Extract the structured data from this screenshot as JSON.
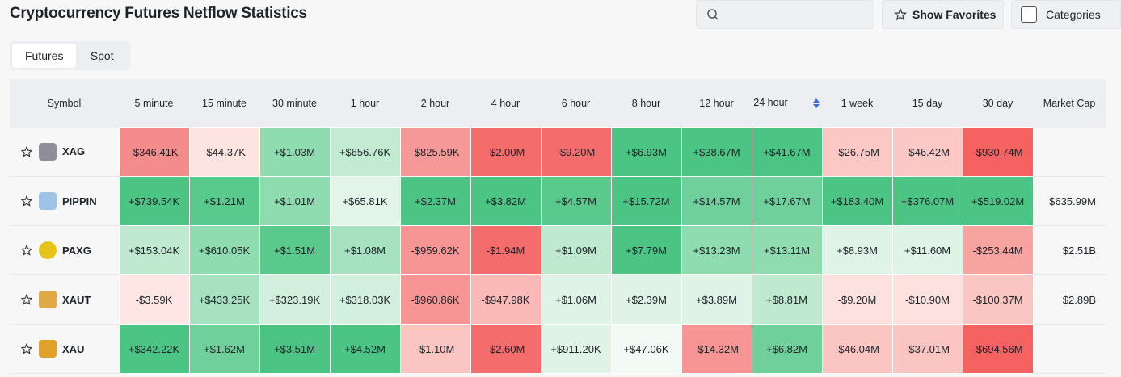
{
  "header": {
    "title": "Cryptocurrency Futures Netflow Statistics",
    "favorites_button": "Show Favorites",
    "categories_button": "Categories"
  },
  "tabs": [
    "Futures",
    "Spot"
  ],
  "table": {
    "columns": [
      "Symbol",
      "5 minute",
      "15 minute",
      "30 minute",
      "1 hour",
      "2 hour",
      "4 hour",
      "6 hour",
      "8 hour",
      "12 hour",
      "24 hour",
      "1 week",
      "15 day",
      "30 day",
      "Market Cap"
    ],
    "rows": [
      {
        "symbol": "XAG",
        "icon_color": "#8e8e99",
        "cells": [
          "-$346.41K",
          "-$44.37K",
          "+$1.03M",
          "+$656.76K",
          "-$825.59K",
          "-$2.00M",
          "-$9.20M",
          "+$6.93M",
          "+$38.67M",
          "+$41.67M",
          "-$26.75M",
          "-$46.42M",
          "-$930.74M"
        ],
        "colors": [
          "#f58c8c",
          "#fde4e1",
          "#8fdcb0",
          "#c2ebd2",
          "#f79898",
          "#f46c6c",
          "#f46c6c",
          "#4cc584",
          "#4cc584",
          "#4cc584",
          "#fbc8c5",
          "#fbc8c5",
          "#f46262"
        ],
        "market_cap": null
      },
      {
        "symbol": "PIPPIN",
        "icon_color": "#9fc3e8",
        "cells": [
          "+$739.54K",
          "+$1.21M",
          "+$1.01M",
          "+$65.81K",
          "+$2.37M",
          "+$3.82M",
          "+$4.57M",
          "+$15.72M",
          "+$14.57M",
          "+$17.67M",
          "+$183.40M",
          "+$376.07M",
          "+$519.02M"
        ],
        "colors": [
          "#4cc584",
          "#5ac98c",
          "#8fdcb0",
          "#e3f5e9",
          "#4cc584",
          "#4cc584",
          "#5ac98c",
          "#4cc584",
          "#6fd09b",
          "#6fd09b",
          "#4cc584",
          "#4cc584",
          "#4cc584"
        ],
        "market_cap": "$635.99M"
      },
      {
        "symbol": "PAXG",
        "icon_color": "#e8c41a",
        "cells": [
          "+$153.04K",
          "+$610.05K",
          "+$1.51M",
          "+$1.08M",
          "-$959.62K",
          "-$1.94M",
          "+$1.09M",
          "+$7.79M",
          "+$13.23M",
          "+$13.11M",
          "+$8.93M",
          "+$11.60M",
          "-$253.44M"
        ],
        "colors": [
          "#bfead0",
          "#8fdcb0",
          "#5ac98c",
          "#a6e2c0",
          "#f79595",
          "#f46c6c",
          "#bfead0",
          "#4cc584",
          "#8fdcb0",
          "#8fdcb0",
          "#dff3e6",
          "#dff3e6",
          "#f7a3a0"
        ],
        "market_cap": "$2.51B"
      },
      {
        "symbol": "XAUT",
        "icon_color": "#e0a948",
        "cells": [
          "-$3.59K",
          "+$433.25K",
          "+$323.19K",
          "+$318.03K",
          "-$960.86K",
          "-$947.98K",
          "+$1.06M",
          "+$2.39M",
          "+$3.89M",
          "+$8.81M",
          "-$9.20M",
          "-$10.90M",
          "-$100.37M"
        ],
        "colors": [
          "#fde6e3",
          "#a6e2c0",
          "#d3efde",
          "#d3efde",
          "#f79595",
          "#fbbab7",
          "#dff3e6",
          "#dff3e6",
          "#dff3e6",
          "#bfead0",
          "#fde1de",
          "#fde1de",
          "#fbc5c2"
        ],
        "market_cap": "$2.89B"
      },
      {
        "symbol": "XAU",
        "icon_color": "#e0a12a",
        "cells": [
          "+$342.22K",
          "+$1.62M",
          "+$3.51M",
          "+$4.52M",
          "-$1.10M",
          "-$2.60M",
          "+$911.20K",
          "+$47.06K",
          "-$14.32M",
          "+$6.82M",
          "-$46.04M",
          "-$37.01M",
          "-$694.56M"
        ],
        "colors": [
          "#4cc584",
          "#6fd09b",
          "#4cc584",
          "#4cc584",
          "#fbc5c2",
          "#f46c6c",
          "#dff3e6",
          "#f1faf4",
          "#f79595",
          "#6fd09b",
          "#fbc5c2",
          "#fbc5c2",
          "#f46262"
        ],
        "market_cap": null
      }
    ]
  }
}
